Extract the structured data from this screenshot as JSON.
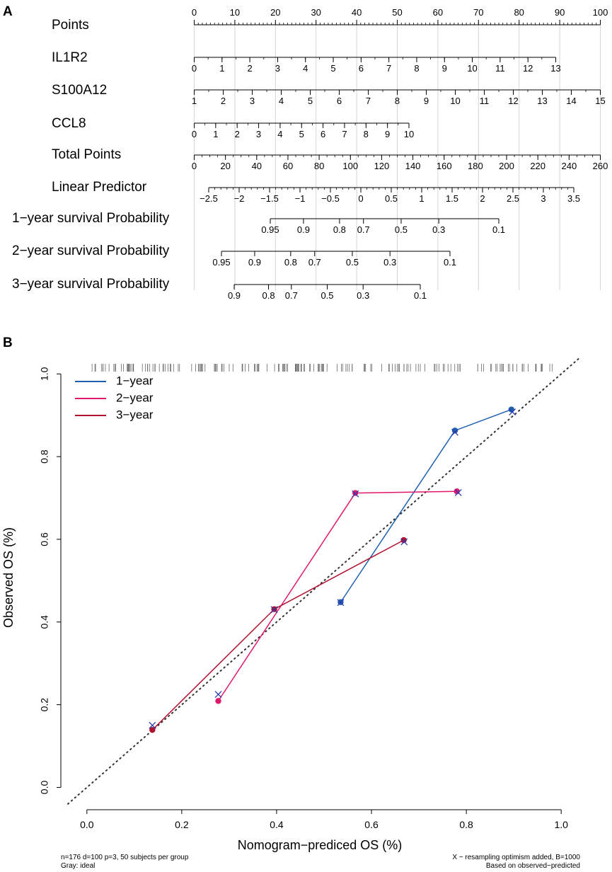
{
  "panel_a": {
    "label": "A",
    "rows": [
      {
        "name": "Points",
        "ticks": [
          0,
          10,
          20,
          30,
          40,
          50,
          60,
          70,
          80,
          90,
          100
        ],
        "labels": [
          "0",
          "10",
          "20",
          "30",
          "40",
          "50",
          "60",
          "70",
          "80",
          "90",
          "100"
        ]
      },
      {
        "name": "IL1R2",
        "ticks": [
          0,
          1,
          2,
          3,
          4,
          5,
          6,
          7,
          8,
          9,
          10,
          11,
          12,
          13
        ],
        "labels": [
          "0",
          "1",
          "2",
          "3",
          "4",
          "5",
          "6",
          "7",
          "8",
          "9",
          "10",
          "11",
          "12",
          "13"
        ]
      },
      {
        "name": "S100A12",
        "ticks": [
          1,
          2,
          3,
          4,
          5,
          6,
          7,
          8,
          9,
          10,
          11,
          12,
          13,
          14,
          15
        ],
        "labels": [
          "1",
          "2",
          "3",
          "4",
          "5",
          "6",
          "7",
          "8",
          "9",
          "10",
          "11",
          "12",
          "13",
          "14",
          "15"
        ]
      },
      {
        "name": "CCL8",
        "ticks": [
          0,
          1,
          2,
          3,
          4,
          5,
          6,
          7,
          8,
          9,
          10
        ],
        "labels": [
          "0",
          "1",
          "2",
          "3",
          "4",
          "5",
          "6",
          "7",
          "8",
          "9",
          "10"
        ]
      },
      {
        "name": "Total Points",
        "ticks": [
          0,
          20,
          40,
          60,
          80,
          100,
          120,
          140,
          160,
          180,
          200,
          220,
          240,
          260
        ],
        "labels": [
          "0",
          "20",
          "40",
          "60",
          "80",
          "100",
          "120",
          "140",
          "160",
          "180",
          "200",
          "220",
          "240",
          "260"
        ]
      },
      {
        "name": "Linear Predictor",
        "ticks": [
          -2.5,
          -2,
          -1.5,
          -1,
          -0.5,
          0,
          0.5,
          1,
          1.5,
          2,
          2.5,
          3,
          3.5
        ],
        "labels": [
          "−2.5",
          "−2",
          "−1.5",
          "−1",
          "−0.5",
          "0",
          "0.5",
          "1",
          "1.5",
          "2",
          "2.5",
          "3",
          "3.5"
        ]
      },
      {
        "name": "1−year survival Probability",
        "ticks": [
          0.95,
          0.9,
          0.8,
          0.7,
          0.5,
          0.3,
          0.1
        ],
        "labels": [
          "0.95",
          "0.9",
          "0.8",
          "0.7",
          "0.5",
          "0.3",
          "0.1"
        ]
      },
      {
        "name": "2−year survival Probability",
        "ticks": [
          0.95,
          0.9,
          0.8,
          0.7,
          0.5,
          0.3,
          0.1
        ],
        "labels": [
          "0.95",
          "0.9",
          "0.8",
          "0.7",
          "0.5",
          "0.3",
          "0.1"
        ]
      },
      {
        "name": "3−year survival Probability",
        "ticks": [
          0.9,
          0.8,
          0.7,
          0.5,
          0.3,
          0.1
        ],
        "labels": [
          "0.9",
          "0.8",
          "0.7",
          "0.5",
          "0.3",
          "0.1"
        ]
      }
    ]
  },
  "chart_data": {
    "type": "line",
    "label": "B",
    "xlabel": "Nomogram−prediced OS (%)",
    "ylabel": "Observed OS (%)",
    "xlim": [
      -0.04,
      1.04
    ],
    "ylim": [
      -0.03,
      1.045
    ],
    "xticks": [
      0.0,
      0.2,
      0.4,
      0.6,
      0.8,
      1.0
    ],
    "xtick_labels": [
      "0.0",
      "0.2",
      "0.4",
      "0.6",
      "0.8",
      "1.0"
    ],
    "yticks": [
      0.0,
      0.2,
      0.4,
      0.6,
      0.8,
      1.0
    ],
    "ytick_labels": [
      "0.0",
      "0.2",
      "0.4",
      "0.6",
      "0.8",
      "1.0"
    ],
    "ideal_line": {
      "from": [
        -0.04,
        -0.04
      ],
      "to": [
        1.04,
        1.04
      ],
      "style": "dotted",
      "color": "#333333"
    },
    "legend_position": "top-left",
    "series": [
      {
        "name": "1−year",
        "color": "#1f5fae",
        "x": [
          0.535,
          0.776,
          0.895
        ],
        "y": [
          0.448,
          0.863,
          0.914
        ],
        "x_marks": {
          "x": [
            0.535,
            0.776,
            0.897
          ],
          "y": [
            0.447,
            0.859,
            0.908
          ]
        }
      },
      {
        "name": "2−year",
        "color": "#e0176a",
        "x": [
          0.277,
          0.566,
          0.78
        ],
        "y": [
          0.209,
          0.712,
          0.716
        ],
        "x_marks": {
          "x": [
            0.277,
            0.566,
            0.783
          ],
          "y": [
            0.225,
            0.71,
            0.713
          ]
        }
      },
      {
        "name": "3−year",
        "color": "#b0112e",
        "x": [
          0.138,
          0.395,
          0.668
        ],
        "y": [
          0.139,
          0.431,
          0.598
        ],
        "x_marks": {
          "x": [
            0.138,
            0.395,
            0.669
          ],
          "y": [
            0.15,
            0.43,
            0.594
          ]
        }
      }
    ],
    "footnote_left": [
      "n=176 d=100 p=3, 50 subjects per group",
      "Gray: ideal"
    ],
    "footnote_right": [
      "X − resampling optimism added, B=1000",
      "Based on observed−predicted"
    ]
  }
}
